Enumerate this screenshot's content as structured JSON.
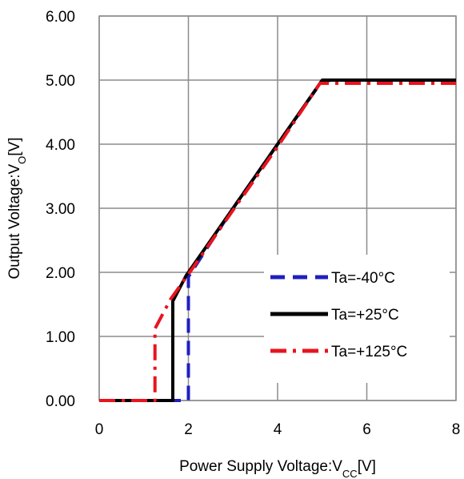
{
  "chart_data": {
    "type": "line",
    "title": "",
    "xlabel": "Power Supply Voltage:V",
    "xlabel_sub": "CC",
    "xlabel_unit": "[V]",
    "ylabel": "Output Voltage:V",
    "ylabel_sub": "O",
    "ylabel_unit": "[V]",
    "xlim": [
      0,
      8
    ],
    "ylim": [
      0,
      6
    ],
    "x_ticks": [
      "0",
      "2",
      "4",
      "6",
      "8"
    ],
    "y_ticks": [
      "0.00",
      "1.00",
      "2.00",
      "3.00",
      "4.00",
      "5.00",
      "6.00"
    ],
    "grid": true,
    "legend_position": "bottom-right",
    "series": [
      {
        "name": "Ta=-40°C",
        "color": "#1f1fbf",
        "dash": "dashed",
        "x": [
          0,
          2.0,
          2.0,
          2.0,
          3.0,
          4.0,
          4.98,
          5.2,
          8.0
        ],
        "y": [
          0,
          0,
          0,
          1.93,
          3.0,
          4.0,
          4.97,
          5.0,
          5.0
        ]
      },
      {
        "name": "Ta=+25°C",
        "color": "#000000",
        "dash": "solid",
        "x": [
          0,
          1.65,
          1.65,
          1.65,
          1.95,
          3.0,
          4.0,
          5.0,
          8.0
        ],
        "y": [
          0,
          0,
          0,
          1.55,
          1.95,
          3.0,
          4.0,
          5.0,
          5.0
        ]
      },
      {
        "name": "Ta=+125°C",
        "color": "#e8141e",
        "dash": "dashdot",
        "x": [
          0,
          1.25,
          1.25,
          1.25,
          1.6,
          2.0,
          3.0,
          4.0,
          4.95,
          8.0
        ],
        "y": [
          0,
          0,
          0,
          1.12,
          1.58,
          1.97,
          2.97,
          3.96,
          4.95,
          4.95
        ]
      }
    ]
  }
}
